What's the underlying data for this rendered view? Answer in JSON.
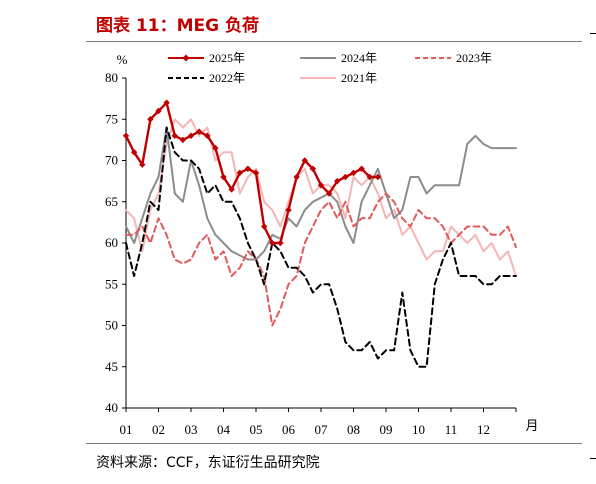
{
  "header": {
    "title": "图表 11：MEG 负荷"
  },
  "footer": {
    "source": "资料来源：CCF，东证衍生品研究院"
  },
  "chart_data": {
    "type": "line",
    "title": "MEG 负荷",
    "ylabel": "%",
    "xlabel": "月",
    "ylim": [
      40,
      80
    ],
    "yticks": [
      40,
      45,
      50,
      55,
      60,
      65,
      70,
      75,
      80
    ],
    "xlim": [
      1,
      13
    ],
    "xticks": [
      "01",
      "02",
      "03",
      "04",
      "05",
      "06",
      "07",
      "08",
      "09",
      "10",
      "11",
      "12"
    ],
    "legend": "top",
    "series": [
      {
        "name": "2025年",
        "color": "#c00000",
        "style": "solid-marker",
        "x": [
          1.0,
          1.25,
          1.5,
          1.75,
          2.0,
          2.25,
          2.5,
          2.75,
          3.0,
          3.25,
          3.5,
          3.75,
          4.0,
          4.25,
          4.5,
          4.75,
          5.0,
          5.25,
          5.5,
          5.75,
          6.0,
          6.25,
          6.5,
          6.75,
          7.0,
          7.25,
          7.5,
          7.75,
          8.0,
          8.25,
          8.5,
          8.75
        ],
        "y": [
          73,
          71,
          69.5,
          75,
          76,
          77,
          73,
          72.5,
          73,
          73.5,
          73,
          71.5,
          68,
          66.5,
          68.5,
          69,
          68.5,
          62,
          60,
          60,
          64,
          68,
          70,
          69,
          67,
          66,
          67.5,
          68,
          68.5,
          69,
          68,
          68
        ]
      },
      {
        "name": "2024年",
        "color": "#8c8c8c",
        "style": "solid",
        "x": [
          1.0,
          1.25,
          1.5,
          1.75,
          2.0,
          2.25,
          2.5,
          2.75,
          3.0,
          3.25,
          3.5,
          3.75,
          4.0,
          4.25,
          4.5,
          4.75,
          5.0,
          5.25,
          5.5,
          5.75,
          6.0,
          6.25,
          6.5,
          6.75,
          7.0,
          7.25,
          7.5,
          7.75,
          8.0,
          8.25,
          8.5,
          8.75,
          9.0,
          9.25,
          9.5,
          9.75,
          10.0,
          10.25,
          10.5,
          10.75,
          11.0,
          11.25,
          11.5,
          11.75,
          12.0,
          12.25,
          12.5,
          12.75,
          13.0
        ],
        "y": [
          62,
          60,
          63,
          66,
          68,
          74,
          66,
          65,
          70,
          67,
          63,
          61,
          60,
          59,
          58.5,
          58,
          58,
          59,
          61,
          60.5,
          63,
          62,
          64,
          65,
          65.5,
          66,
          65,
          62,
          60,
          65,
          67,
          69,
          66,
          63,
          64,
          68,
          68,
          66,
          67,
          67,
          67,
          67,
          72,
          73,
          72,
          71.5,
          71.5,
          71.5,
          71.5
        ]
      },
      {
        "name": "2023年",
        "color": "#e05a5a",
        "style": "dashed",
        "x": [
          1.0,
          1.25,
          1.5,
          1.75,
          2.0,
          2.25,
          2.5,
          2.75,
          3.0,
          3.25,
          3.5,
          3.75,
          4.0,
          4.25,
          4.5,
          4.75,
          5.0,
          5.25,
          5.5,
          5.75,
          6.0,
          6.25,
          6.5,
          6.75,
          7.0,
          7.25,
          7.5,
          7.75,
          8.0,
          8.25,
          8.5,
          8.75,
          9.0,
          9.25,
          9.5,
          9.75,
          10.0,
          10.25,
          10.5,
          10.75,
          11.0,
          11.25,
          11.5,
          11.75,
          12.0,
          12.25,
          12.5,
          12.75,
          13.0
        ],
        "y": [
          61,
          61,
          62,
          60,
          63,
          61,
          58,
          57.5,
          58,
          60,
          61,
          58,
          59,
          56,
          57,
          59,
          58,
          56,
          50,
          52,
          55,
          56,
          60,
          62,
          64,
          65,
          63,
          65,
          62,
          63,
          63,
          65,
          66,
          65,
          63,
          62,
          64,
          63,
          63,
          62,
          60,
          61,
          62,
          62,
          62,
          61,
          61,
          62,
          59.5
        ]
      },
      {
        "name": "2022年",
        "color": "#000000",
        "style": "dashed",
        "x": [
          1.0,
          1.25,
          1.5,
          1.75,
          2.0,
          2.25,
          2.5,
          2.75,
          3.0,
          3.25,
          3.5,
          3.75,
          4.0,
          4.25,
          4.5,
          4.75,
          5.0,
          5.25,
          5.5,
          5.75,
          6.0,
          6.25,
          6.5,
          6.75,
          7.0,
          7.25,
          7.5,
          7.75,
          8.0,
          8.25,
          8.5,
          8.75,
          9.0,
          9.25,
          9.5,
          9.75,
          10.0,
          10.25,
          10.5,
          10.75,
          11.0,
          11.25,
          11.5,
          11.75,
          12.0,
          12.25,
          12.5,
          12.75,
          13.0
        ],
        "y": [
          60,
          56,
          60,
          65,
          64,
          74,
          71,
          70,
          70,
          69,
          66,
          67,
          65,
          65,
          63,
          60,
          58,
          55,
          60,
          59,
          57,
          57,
          56,
          54,
          55,
          55,
          52,
          48,
          47,
          47,
          48,
          46,
          47,
          47,
          54,
          47,
          45,
          45,
          55,
          58,
          60,
          56,
          56,
          56,
          55,
          55,
          56,
          56,
          56
        ]
      },
      {
        "name": "2021年",
        "color": "#f4b6b6",
        "style": "solid",
        "x": [
          1.0,
          1.25,
          1.5,
          1.75,
          2.0,
          2.25,
          2.5,
          2.75,
          3.0,
          3.25,
          3.5,
          3.75,
          4.0,
          4.25,
          4.5,
          4.75,
          5.0,
          5.25,
          5.5,
          5.75,
          6.0,
          6.25,
          6.5,
          6.75,
          7.0,
          7.25,
          7.5,
          7.75,
          8.0,
          8.25,
          8.5,
          8.75,
          9.0,
          9.25,
          9.5,
          9.75,
          10.0,
          10.25,
          10.5,
          10.75,
          11.0,
          11.25,
          11.5,
          11.75,
          12.0,
          12.25,
          12.5,
          12.75,
          13.0
        ],
        "y": [
          64,
          63,
          59,
          64,
          66,
          72,
          75,
          74,
          75,
          73,
          74,
          70,
          71,
          71,
          66,
          68,
          69,
          65,
          64,
          62,
          65,
          68,
          69,
          66,
          67,
          67,
          66,
          63,
          68,
          67,
          68,
          66,
          63,
          64,
          61,
          62,
          60,
          58,
          59,
          59,
          62,
          61,
          60,
          61,
          59,
          60,
          58,
          59,
          56
        ]
      }
    ]
  }
}
